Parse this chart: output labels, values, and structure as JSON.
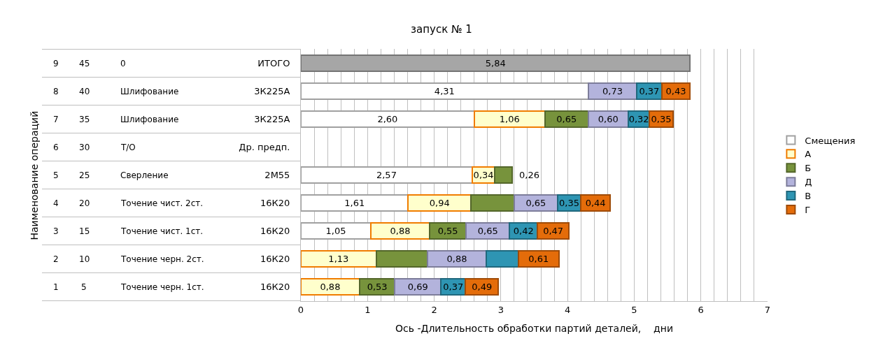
{
  "chart_data": {
    "type": "bar",
    "orientation": "horizontal",
    "stacked": true,
    "title": "запуск № 1",
    "xlabel": "Ось -Длительность обработки партий деталей,    дни",
    "categories": [
      "ИТОГО",
      "3К225А",
      "3К225А",
      "Др. предп.",
      "2М55",
      "16К20",
      "16К20",
      "16К20",
      "16К20"
    ],
    "annotations": [
      "9",
      "45",
      "0",
      "8",
      "40",
      "Шлифование",
      "7",
      "35",
      "Шлифование",
      "6",
      "30",
      "Т/О",
      "5",
      "25",
      "Сверление",
      "4",
      "20",
      "Точение чист. 2ст.",
      "3",
      "15",
      "Точение чист. 1ст.",
      "2",
      "10",
      "Точение черн. 2ст.",
      "1",
      "5",
      "Точение черн. 1ст.",
      "Наименование операций"
    ],
    "series": [
      {
        "name": "Смещения",
        "color": "#ffffff",
        "colors": [
          "#a6a6a6",
          "#ffffff",
          "#ffffff",
          "#ffffff",
          "#ffffff",
          "#ffffff",
          "#ffffff",
          "#ffffff",
          "#ffffff"
        ],
        "values": [
          5.84,
          4.31,
          2.6,
          null,
          2.57,
          1.61,
          1.05,
          0,
          0
        ],
        "value_labels": [
          "5,84",
          "4,31",
          "2,60",
          null,
          "2,57",
          "1,61",
          "1,05",
          null,
          null
        ]
      },
      {
        "name": "А",
        "color": "#ffffcc",
        "values": [
          null,
          null,
          1.06,
          null,
          0.34,
          0.94,
          0.88,
          1.13,
          0.88
        ],
        "value_labels": [
          null,
          null,
          "1,06",
          null,
          "0,34",
          "0,94",
          "0,88",
          "1,13",
          "0,88"
        ]
      },
      {
        "name": "Б",
        "color": "#77933c",
        "values": [
          null,
          null,
          0.65,
          null,
          0.26,
          0.65,
          0.55,
          0.77,
          0.53
        ],
        "value_labels": [
          null,
          null,
          "0,65",
          null,
          "0,26",
          null,
          "0,55",
          null,
          "0,53"
        ]
      },
      {
        "name": "Д",
        "color": "#b3b3dc",
        "values": [
          null,
          0.73,
          0.6,
          null,
          null,
          0.65,
          0.65,
          0.88,
          0.69
        ],
        "value_labels": [
          null,
          "0,73",
          "0,60",
          null,
          null,
          "0,65",
          "0,65",
          "0,88",
          "0,69"
        ]
      },
      {
        "name": "В",
        "color": "#2e95b3",
        "values": [
          null,
          0.37,
          0.32,
          null,
          null,
          0.35,
          0.42,
          0.48,
          0.37
        ],
        "value_labels": [
          null,
          "0,37",
          "0,32",
          null,
          null,
          "0,35",
          "0,42",
          null,
          "0,37"
        ]
      },
      {
        "name": "Г",
        "color": "#e46c0a",
        "values": [
          null,
          0.43,
          0.35,
          null,
          null,
          0.44,
          0.47,
          0.61,
          0.49
        ],
        "value_labels": [
          null,
          "0,43",
          "0,35",
          null,
          null,
          "0,44",
          "0,47",
          "0,61",
          "0,49"
        ]
      }
    ],
    "xlim": [
      0,
      7
    ],
    "xticks": [
      0,
      {
        "value": 0.2,
        "label": null
      },
      {
        "value": 0.4,
        "label": null
      },
      {
        "value": 0.6,
        "label": null
      },
      {
        "value": 0.8,
        "label": null
      },
      1,
      {
        "value": 1.2,
        "label": null
      },
      {
        "value": 1.4,
        "label": null
      },
      {
        "value": 1.6,
        "label": null
      },
      {
        "value": 1.8,
        "label": null
      },
      2,
      {
        "value": 2.2,
        "label": null
      },
      {
        "value": 2.4,
        "label": null
      },
      {
        "value": 2.6,
        "label": null
      },
      {
        "value": 2.8,
        "label": null
      },
      3,
      {
        "value": 3.2,
        "label": null
      },
      {
        "value": 3.4,
        "label": null
      },
      {
        "value": 3.6,
        "label": null
      },
      {
        "value": 3.8,
        "label": null
      },
      4,
      {
        "value": 4.2,
        "label": null
      },
      {
        "value": 4.4,
        "label": null
      },
      {
        "value": 4.6,
        "label": null
      },
      {
        "value": 4.8,
        "label": null
      },
      5,
      {
        "value": 5.2,
        "label": null
      },
      {
        "value": 5.4,
        "label": null
      },
      {
        "value": 5.6,
        "label": null
      },
      {
        "value": 5.8,
        "label": null
      },
      6,
      {
        "value": 6.2,
        "label": null
      },
      {
        "value": 6.4,
        "label": null
      },
      {
        "value": 6.6,
        "label": null
      },
      {
        "value": 6.8,
        "label": null
      },
      7
    ],
    "grid": "x",
    "legend": "right"
  }
}
